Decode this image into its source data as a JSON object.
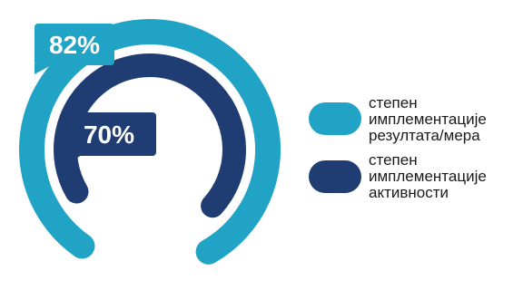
{
  "chart_data": {
    "type": "pie",
    "subtype": "radial-progress",
    "series": [
      {
        "name": "степен имплементације резултата/мера",
        "value": 82,
        "label": "82%",
        "color": "#21a3c6"
      },
      {
        "name": "степен имплементације активности",
        "value": 70,
        "label": "70%",
        "color": "#1f3d73"
      }
    ],
    "legend_position": "right"
  },
  "legend": {
    "items": [
      {
        "label": "степен имплементације резултата/мера"
      },
      {
        "label": "степен имплементације активности"
      }
    ]
  }
}
